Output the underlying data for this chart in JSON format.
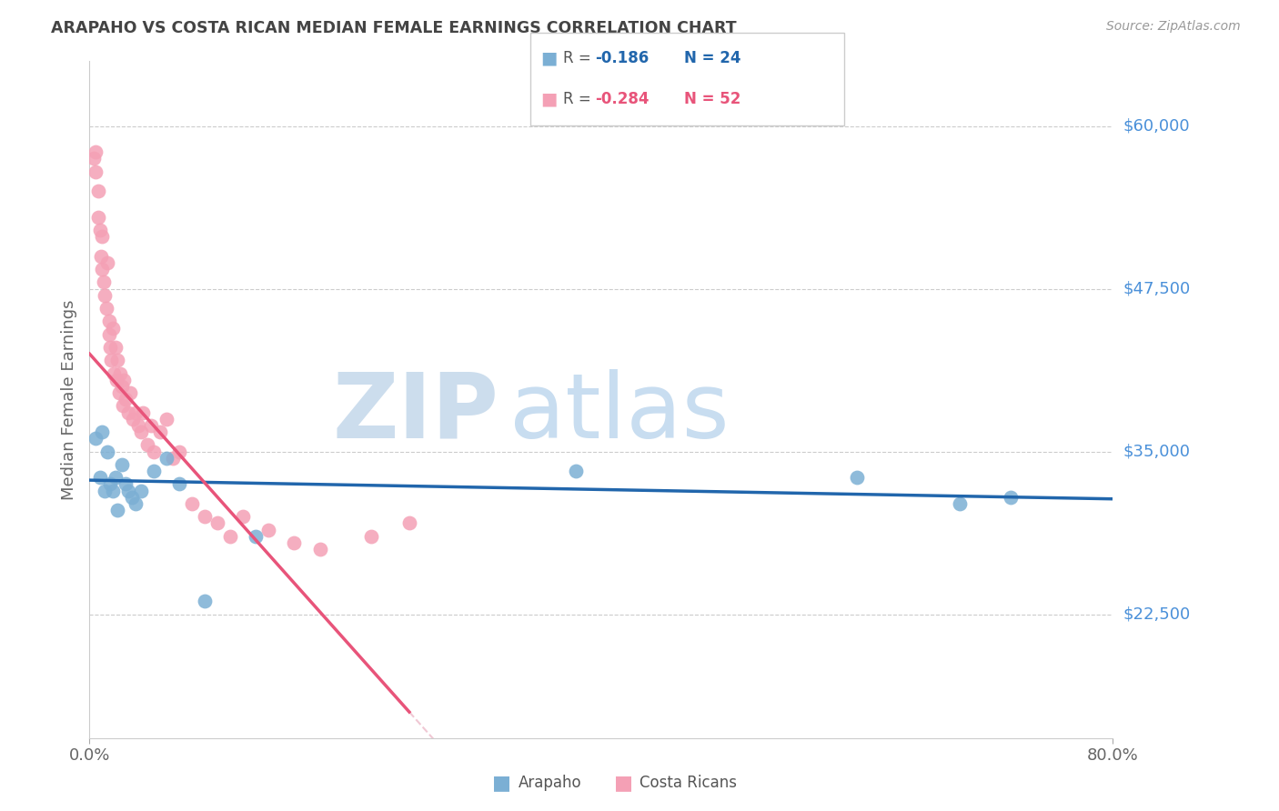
{
  "title": "ARAPAHO VS COSTA RICAN MEDIAN FEMALE EARNINGS CORRELATION CHART",
  "source": "Source: ZipAtlas.com",
  "ylabel": "Median Female Earnings",
  "ytick_labels": [
    "$22,500",
    "$35,000",
    "$47,500",
    "$60,000"
  ],
  "ytick_values": [
    22500,
    35000,
    47500,
    60000
  ],
  "ymin": 13000,
  "ymax": 65000,
  "xmin": 0.0,
  "xmax": 0.8,
  "color_arapaho": "#7bafd4",
  "color_costa": "#f4a0b5",
  "color_arapaho_line": "#2166ac",
  "color_costa_line": "#e8547a",
  "color_costa_line_ext": "#f0c8d4",
  "bg_color": "#ffffff",
  "grid_color": "#cccccc",
  "right_label_color": "#4a90d9",
  "title_color": "#444444",
  "watermark_zip_color": "#ccdded",
  "watermark_atlas_color": "#c8ddf0",
  "arapaho_x": [
    0.005,
    0.008,
    0.01,
    0.012,
    0.014,
    0.016,
    0.018,
    0.02,
    0.022,
    0.025,
    0.028,
    0.03,
    0.033,
    0.036,
    0.04,
    0.05,
    0.06,
    0.07,
    0.09,
    0.13,
    0.38,
    0.6,
    0.68,
    0.72
  ],
  "arapaho_y": [
    36000,
    33000,
    36500,
    32000,
    35000,
    32500,
    32000,
    33000,
    30500,
    34000,
    32500,
    32000,
    31500,
    31000,
    32000,
    33500,
    34500,
    32500,
    23500,
    28500,
    33500,
    33000,
    31000,
    31500
  ],
  "costa_x": [
    0.003,
    0.005,
    0.005,
    0.007,
    0.007,
    0.008,
    0.009,
    0.01,
    0.01,
    0.011,
    0.012,
    0.013,
    0.014,
    0.015,
    0.015,
    0.016,
    0.017,
    0.018,
    0.019,
    0.02,
    0.021,
    0.022,
    0.023,
    0.024,
    0.025,
    0.026,
    0.027,
    0.028,
    0.03,
    0.032,
    0.034,
    0.036,
    0.038,
    0.04,
    0.042,
    0.045,
    0.048,
    0.05,
    0.055,
    0.06,
    0.065,
    0.07,
    0.08,
    0.09,
    0.1,
    0.11,
    0.12,
    0.14,
    0.16,
    0.18,
    0.22,
    0.25
  ],
  "costa_y": [
    57500,
    58000,
    56500,
    55000,
    53000,
    52000,
    50000,
    51500,
    49000,
    48000,
    47000,
    46000,
    49500,
    45000,
    44000,
    43000,
    42000,
    44500,
    41000,
    43000,
    40500,
    42000,
    39500,
    41000,
    40000,
    38500,
    40500,
    39000,
    38000,
    39500,
    37500,
    38000,
    37000,
    36500,
    38000,
    35500,
    37000,
    35000,
    36500,
    37500,
    34500,
    35000,
    31000,
    30000,
    29500,
    28500,
    30000,
    29000,
    28000,
    27500,
    28500,
    29500
  ],
  "costa_line_x_end": 0.25,
  "costa_line_ext_end": 0.52,
  "arapaho_line_slope": -1800,
  "arapaho_line_intercept": 32800,
  "costa_line_slope": -110000,
  "costa_line_intercept": 42500
}
